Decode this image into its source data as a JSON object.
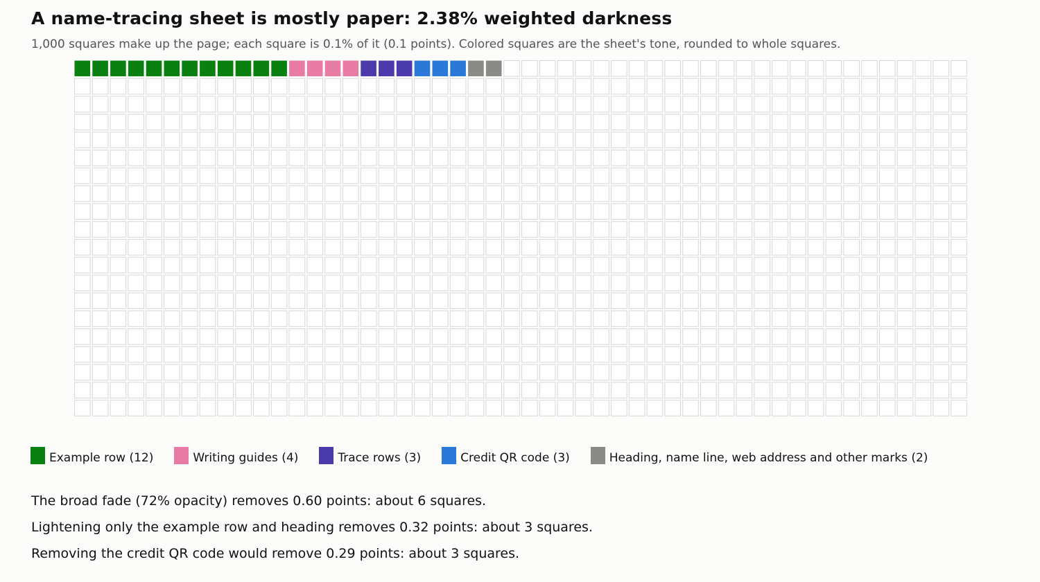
{
  "chart_data": {
    "type": "waffle",
    "title": "A name-tracing sheet is mostly paper: 2.38% weighted darkness",
    "subtitle": "1,000 squares make up the page; each square is 0.1% of it (0.1 points). Colored squares are the sheet's tone, rounded to whole squares.",
    "total_squares": 1000,
    "columns": 50,
    "rows": 20,
    "empty_color": "#ffffff",
    "empty_border_color": "#d8d8d8",
    "categories": [
      {
        "name": "Example row",
        "count": 12,
        "color": "#0a8011",
        "legend": "Example row (12)"
      },
      {
        "name": "Writing guides",
        "count": 4,
        "color": "#e87ba3",
        "legend": "Writing guides (4)"
      },
      {
        "name": "Trace rows",
        "count": 3,
        "color": "#4a3aab",
        "legend": "Trace rows (3)"
      },
      {
        "name": "Credit QR code",
        "count": 3,
        "color": "#2a79d9",
        "legend": "Credit QR code (3)"
      },
      {
        "name": "Heading, name line, web address and other marks",
        "count": 2,
        "color": "#8a8a87",
        "legend": "Heading, name line, web address and other marks (2)"
      }
    ],
    "notes": [
      "The broad fade (72% opacity) removes 0.60 points: about 6 squares.",
      "Lightening only the example row and heading removes 0.32 points: about 3 squares.",
      "Removing the credit QR code would remove 0.29 points: about 3 squares."
    ]
  }
}
